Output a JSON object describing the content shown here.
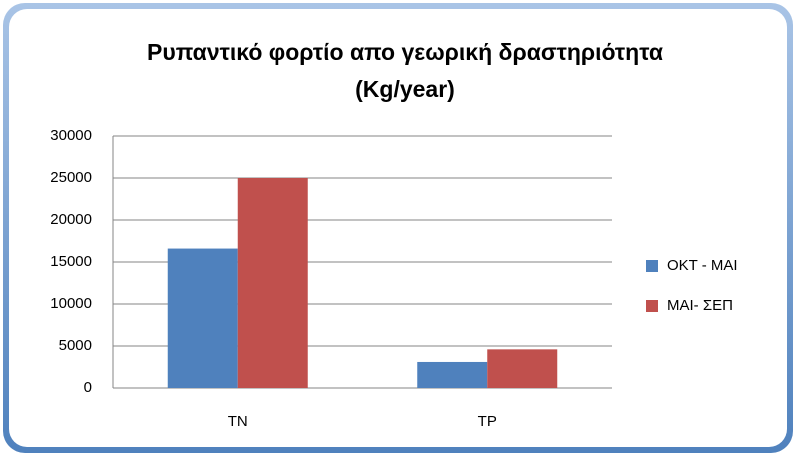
{
  "chart_data": {
    "type": "bar",
    "title": [
      "Ρυπαντικό φορτίο απο γεωρική δραστηριότητα",
      "(Kg/year)"
    ],
    "categories": [
      "TN",
      "TP"
    ],
    "series": [
      {
        "name": "ΟΚΤ - ΜΑΙ",
        "color": "#4f81bd",
        "values": [
          16600,
          3100
        ]
      },
      {
        "name": "ΜΑΙ- ΣΕΠ",
        "color": "#c0504d",
        "values": [
          25000,
          4600
        ]
      }
    ],
    "ylim": [
      0,
      30000
    ],
    "yticks": [
      0,
      5000,
      10000,
      15000,
      20000,
      25000,
      30000
    ],
    "grid": true,
    "legend": "right"
  }
}
